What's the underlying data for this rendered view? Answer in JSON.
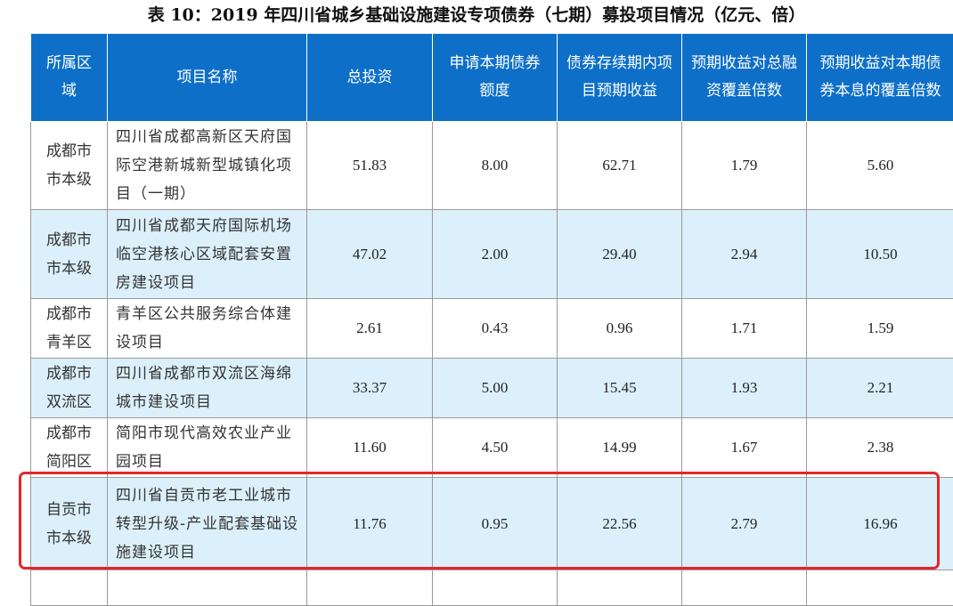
{
  "title": "表 10：2019 年四川省城乡基础设施建设专项债券（七期）募投项目情况（亿元、倍）",
  "headers": [
    "所属区域",
    "项目名称",
    "总投资",
    "申请本期债券额度",
    "债券存续期内项目预期收益",
    "预期收益对总融资覆盖倍数",
    "预期收益对本期债券本息的覆盖倍数"
  ],
  "rows": [
    {
      "region": "成都市市本级",
      "name": "四川省成都高新区天府国际空港新城新型城镇化项目（一期）",
      "total": "51.83",
      "quota": "8.00",
      "income": "62.71",
      "cover_total": "1.79",
      "cover_bond": "5.60"
    },
    {
      "region": "成都市市本级",
      "name": "四川省成都天府国际机场临空港核心区域配套安置房建设项目",
      "total": "47.02",
      "quota": "2.00",
      "income": "29.40",
      "cover_total": "2.94",
      "cover_bond": "10.50"
    },
    {
      "region": "成都市青羊区",
      "name": "青羊区公共服务综合体建设项目",
      "total": "2.61",
      "quota": "0.43",
      "income": "0.96",
      "cover_total": "1.71",
      "cover_bond": "1.59"
    },
    {
      "region": "成都市双流区",
      "name": "四川省成都市双流区海绵城市建设项目",
      "total": "33.37",
      "quota": "5.00",
      "income": "15.45",
      "cover_total": "1.93",
      "cover_bond": "2.21"
    },
    {
      "region": "成都市简阳区",
      "name": "简阳市现代高效农业产业园项目",
      "total": "11.60",
      "quota": "4.50",
      "income": "14.99",
      "cover_total": "1.67",
      "cover_bond": "2.38"
    },
    {
      "region": "自贡市市本级",
      "name": "四川省自贡市老工业城市转型升级-产业配套基础设施建设项目",
      "total": "11.76",
      "quota": "0.95",
      "income": "22.56",
      "cover_total": "2.79",
      "cover_bond": "16.96"
    }
  ],
  "colors": {
    "header_bg": "#0e6fc8",
    "alt_row_bg": "#dcf0fb",
    "highlight_border": "#e3262a"
  }
}
